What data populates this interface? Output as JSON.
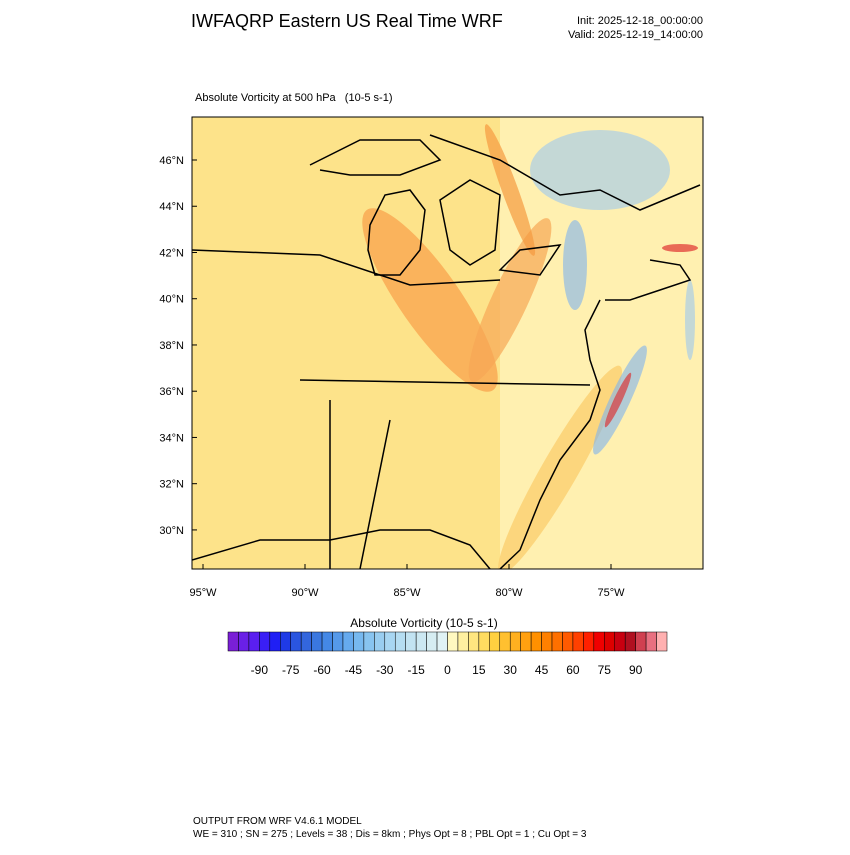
{
  "header": {
    "title": "IWFAQRP Eastern US Real Time WRF",
    "init": "Init: 2025-12-18_00:00:00",
    "valid": "Valid: 2025-12-19_14:00:00"
  },
  "panel": {
    "title": "Absolute Vorticity at 500 hPa   (10-5 s-1)",
    "xlim": [
      -95.54,
      -70.49
    ],
    "ylim": [
      28.31,
      47.86
    ],
    "yticks": [
      {
        "value": 46,
        "label": "46°N"
      },
      {
        "value": 44,
        "label": "44°N"
      },
      {
        "value": 42,
        "label": "42°N"
      },
      {
        "value": 40,
        "label": "40°N"
      },
      {
        "value": 38,
        "label": "38°N"
      },
      {
        "value": 36,
        "label": "36°N"
      },
      {
        "value": 34,
        "label": "34°N"
      },
      {
        "value": 32,
        "label": "32°N"
      },
      {
        "value": 30,
        "label": "30°N"
      }
    ],
    "xticks": [
      {
        "value": -95,
        "label": "95°W"
      },
      {
        "value": -90,
        "label": "90°W"
      },
      {
        "value": -85,
        "label": "85°W"
      },
      {
        "value": -80,
        "label": "80°W"
      },
      {
        "value": -75,
        "label": "75°W"
      }
    ]
  },
  "colorbar": {
    "title": "Absolute Vorticity  (10-5 s-1)",
    "lim": [
      -105,
      105
    ],
    "step": 5,
    "ticks": [
      -90,
      -75,
      -60,
      -45,
      -30,
      -15,
      0,
      15,
      30,
      45,
      60,
      75,
      90
    ],
    "colors": [
      "#7a1fd6",
      "#6a20e6",
      "#5a1ff0",
      "#3a1ff5",
      "#1f1ff5",
      "#1f3ae6",
      "#2a55e0",
      "#3366dd",
      "#3a77e0",
      "#4488e6",
      "#5599ea",
      "#66aaee",
      "#77b9f0",
      "#88c4f0",
      "#99cdf0",
      "#a8d6f2",
      "#b5ddf2",
      "#c2e3f2",
      "#cce8f2",
      "#d6edf2",
      "#e0f2f5",
      "#fff8c0",
      "#fff0a0",
      "#ffe680",
      "#ffdc60",
      "#ffd040",
      "#ffc030",
      "#ffb020",
      "#ffa010",
      "#ff9000",
      "#ff8000",
      "#ff7000",
      "#ff5a00",
      "#ff4000",
      "#ff2000",
      "#f00000",
      "#dd0000",
      "#c80010",
      "#b01020",
      "#d04050",
      "#e87080",
      "#ffb0b0"
    ]
  },
  "footer": {
    "line1": "OUTPUT FROM WRF V4.6.1 MODEL",
    "line2": "WE = 310 ; SN = 275 ; Levels = 38 ; Dis = 8km ; Phys Opt = 8 ; PBL Opt = 1 ; Cu Opt = 3"
  }
}
